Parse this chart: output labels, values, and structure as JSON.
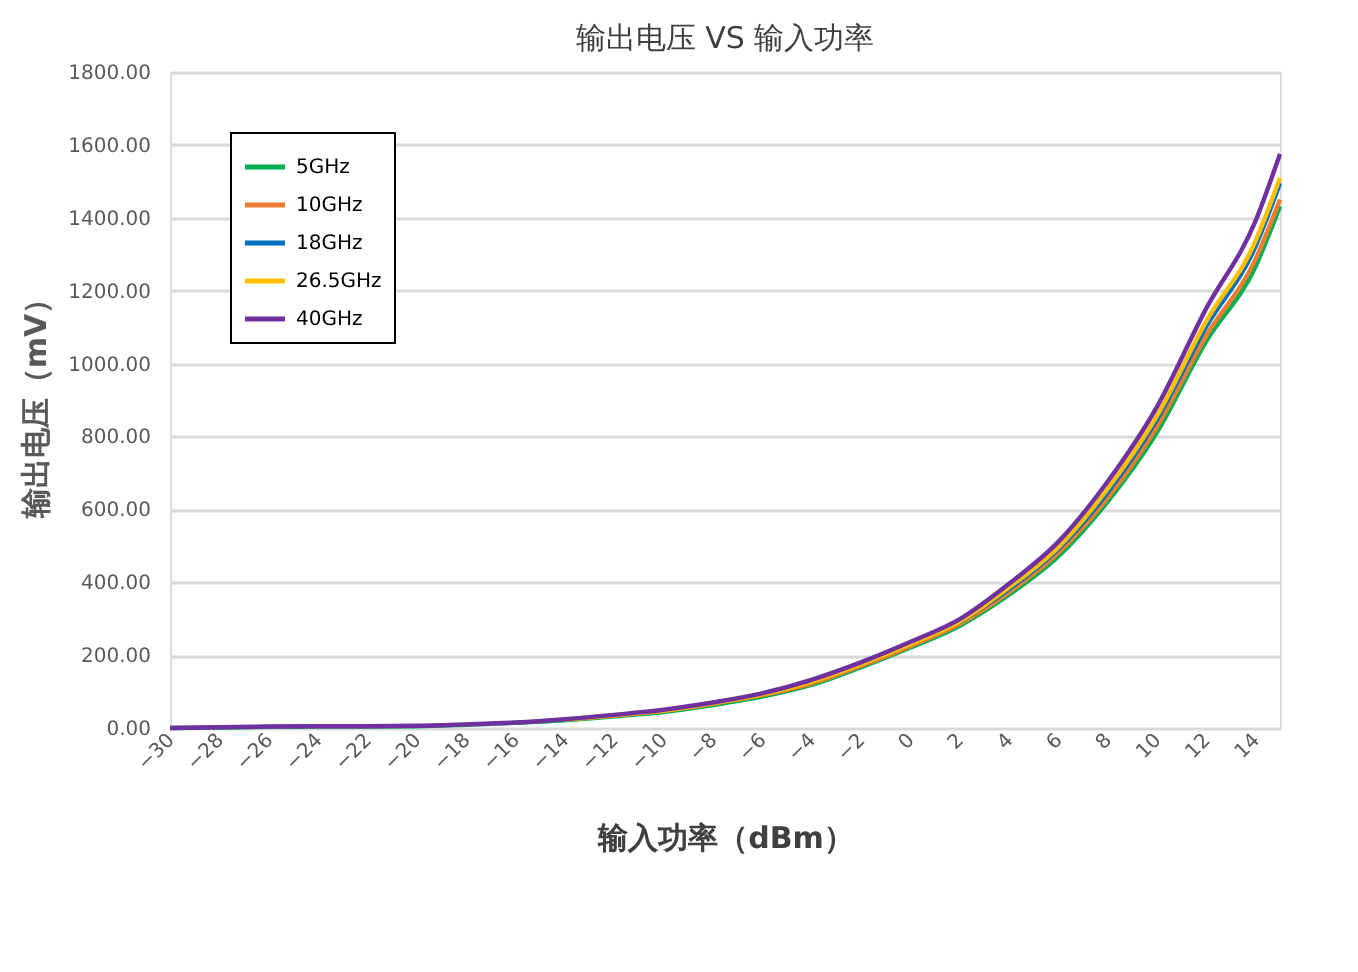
{
  "chart_data": {
    "type": "line",
    "title": "输出电压 VS 输入功率",
    "xlabel": "输入功率（dBm）",
    "ylabel": "输出电压（mV）",
    "x": [
      -30,
      -28,
      -26,
      -24,
      -22,
      -20,
      -18,
      -16,
      -14,
      -12,
      -10,
      -8,
      -6,
      -4,
      -2,
      0,
      2,
      4,
      6,
      8,
      10,
      12,
      14,
      15
    ],
    "series": [
      {
        "name": "5GHz",
        "color": "#00b050",
        "values": [
          0,
          1,
          3,
          4,
          4,
          5,
          9,
          14,
          21,
          32,
          44,
          63,
          86,
          118,
          166,
          220,
          280,
          365,
          470,
          620,
          810,
          1060,
          1265,
          1432
        ]
      },
      {
        "name": "10GHz",
        "color": "#ed7d31",
        "values": [
          null,
          null,
          null,
          null,
          null,
          null,
          null,
          null,
          23,
          34,
          47,
          67,
          90,
          122,
          170,
          224,
          285,
          372,
          480,
          630,
          825,
          1075,
          1285,
          1450
        ]
      },
      {
        "name": "18GHz",
        "color": "#0070c0",
        "values": [
          null,
          null,
          null,
          null,
          null,
          null,
          null,
          null,
          null,
          null,
          null,
          null,
          null,
          null,
          null,
          null,
          290,
          380,
          490,
          645,
          845,
          1100,
          1320,
          1495
        ]
      },
      {
        "name": "26.5GHz",
        "color": "#ffc000",
        "values": [
          null,
          null,
          null,
          null,
          null,
          null,
          null,
          null,
          23,
          35,
          48,
          68,
          92,
          127,
          175,
          230,
          292,
          385,
          495,
          655,
          855,
          1115,
          1335,
          1510
        ]
      },
      {
        "name": "40GHz",
        "color": "#7030a0",
        "values": [
          0,
          2,
          4,
          5,
          5,
          6,
          10,
          15,
          24,
          36,
          50,
          70,
          95,
          132,
          180,
          236,
          298,
          395,
          510,
          675,
          880,
          1150,
          1390,
          1575
        ]
      }
    ],
    "xlim": [
      -30,
      15
    ],
    "xticks": [
      -30,
      -28,
      -26,
      -24,
      -22,
      -20,
      -18,
      -16,
      -14,
      -12,
      -10,
      -8,
      -6,
      -4,
      -2,
      0,
      2,
      4,
      6,
      8,
      10,
      12,
      14
    ],
    "ylim": [
      0,
      1800
    ],
    "yticks": [
      {
        "value": 0,
        "label": "0.00"
      },
      {
        "value": 200,
        "label": "200.00"
      },
      {
        "value": 400,
        "label": "400.00"
      },
      {
        "value": 600,
        "label": "600.00"
      },
      {
        "value": 800,
        "label": "800.00"
      },
      {
        "value": 1000,
        "label": "1000.00"
      },
      {
        "value": 1200,
        "label": "1200.00"
      },
      {
        "value": 1400,
        "label": "1400.00"
      },
      {
        "value": 1600,
        "label": "1600.00"
      },
      {
        "value": 1800,
        "label": "1800.00"
      }
    ],
    "grid": "y",
    "legend": "top left",
    "marker": "none",
    "line_style": "solid"
  }
}
